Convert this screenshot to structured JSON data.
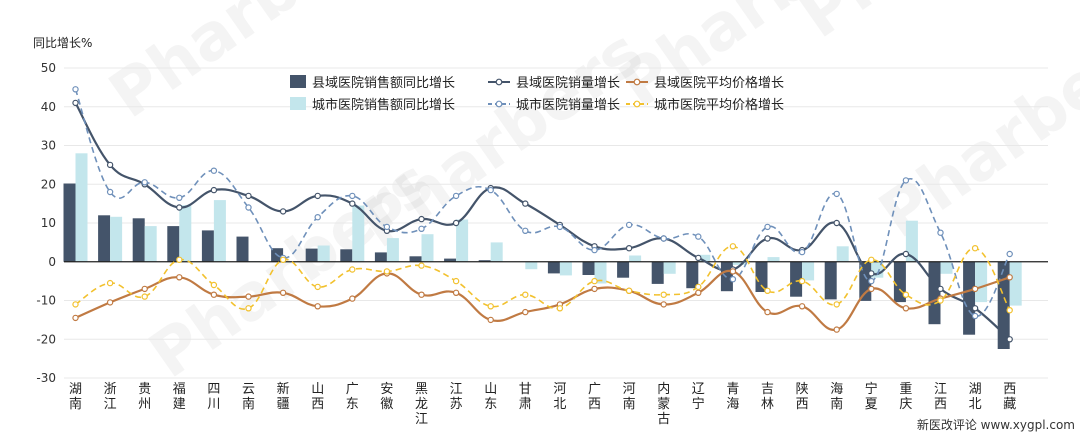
{
  "chart_data": {
    "type": "bar",
    "ylabel": "同比增长%",
    "ylim": [
      -30,
      50
    ],
    "yticks": [
      50,
      40,
      30,
      20,
      10,
      0,
      -10,
      -20,
      -30
    ],
    "grid": true,
    "legend_position": "top-center",
    "categories": [
      "湖南",
      "浙江",
      "贵州",
      "福建",
      "四川",
      "云南",
      "新疆",
      "山西",
      "广东",
      "安徽",
      "黑龙江",
      "江苏",
      "山东",
      "甘肃",
      "河北",
      "广西",
      "河南",
      "内蒙古",
      "辽宁",
      "青海",
      "吉林",
      "陕西",
      "海南",
      "宁夏",
      "重庆",
      "江西",
      "湖北",
      "西藏"
    ],
    "bar_series": [
      {
        "name": "县域医院销售额同比增长",
        "color": "#44546a",
        "values": [
          20.2,
          12.0,
          11.2,
          9.2,
          8.1,
          6.5,
          3.5,
          3.4,
          3.2,
          2.4,
          1.4,
          0.8,
          0.4,
          0,
          -3.0,
          -3.4,
          -4.1,
          -5.7,
          -6.8,
          -7.6,
          -7.8,
          -9.0,
          -9.7,
          -10.1,
          -10.4,
          -16.1,
          -18.8,
          -22.5
        ]
      },
      {
        "name": "城市医院销售额同比增长",
        "color": "#c3e6ec",
        "values": [
          28.0,
          11.6,
          9.2,
          14.6,
          15.9,
          0.2,
          -0.2,
          4.2,
          14.5,
          6.1,
          7.1,
          10.9,
          5.0,
          -1.9,
          -3.5,
          -5.6,
          1.6,
          -3.1,
          1.8,
          -0.8,
          1.2,
          -4.8,
          4.0,
          -4.1,
          10.6,
          -3.1,
          -10.4,
          -11.3
        ]
      }
    ],
    "line_series": [
      {
        "name": "县域医院销量增长",
        "color": "#44546a",
        "dashed": false,
        "values": [
          41,
          25,
          20,
          14,
          18.5,
          17,
          13,
          17,
          15,
          8,
          11,
          10,
          19,
          15,
          9.5,
          4,
          3.5,
          6,
          1,
          -2,
          6,
          3,
          10,
          -3,
          2,
          -7,
          -12,
          -20
        ]
      },
      {
        "name": "城市医院销量增长",
        "color": "#6f90ba",
        "dashed": true,
        "values": [
          44.5,
          18,
          20.5,
          16.5,
          23.5,
          14,
          1,
          11.5,
          17,
          9,
          8.5,
          17,
          18.5,
          8,
          9,
          3,
          9.5,
          6,
          6.5,
          -4.5,
          9,
          2.5,
          17.5,
          -5,
          21,
          7.5,
          -14,
          2
        ]
      },
      {
        "name": "县域医院平均价格增长",
        "color": "#c07a43",
        "dashed": false,
        "values": [
          -14.5,
          -10.5,
          -7,
          -4,
          -8.5,
          -9,
          -8,
          -11.5,
          -9.5,
          -3,
          -8.5,
          -8,
          -15,
          -13,
          -11,
          -7,
          -7.5,
          -11,
          -8,
          -2.5,
          -13,
          -11.5,
          -17.5,
          -7,
          -12,
          -9.5,
          -7,
          -4
        ]
      },
      {
        "name": "城市医院平均价格增长",
        "color": "#f2c12e",
        "dashed": true,
        "values": [
          -11,
          -5.5,
          -9,
          0.5,
          -6,
          -12,
          0.5,
          -6.5,
          -2,
          -2.5,
          -1,
          -5,
          -11.5,
          -8.5,
          -12,
          -5,
          -7.5,
          -8.5,
          -6.5,
          4,
          -7.5,
          -5,
          -11,
          0.5,
          -8.5,
          -10,
          3.5,
          -12.5
        ]
      }
    ]
  },
  "legend": {
    "items": [
      "县域医院销售额同比增长",
      "县域医院销量增长",
      "县域医院平均价格增长",
      "城市医院销售额同比增长",
      "城市医院销量增长",
      "城市医院平均价格增长"
    ]
  },
  "watermark": "Pharbers",
  "footer": "新医改评论 www.xygpl.com"
}
